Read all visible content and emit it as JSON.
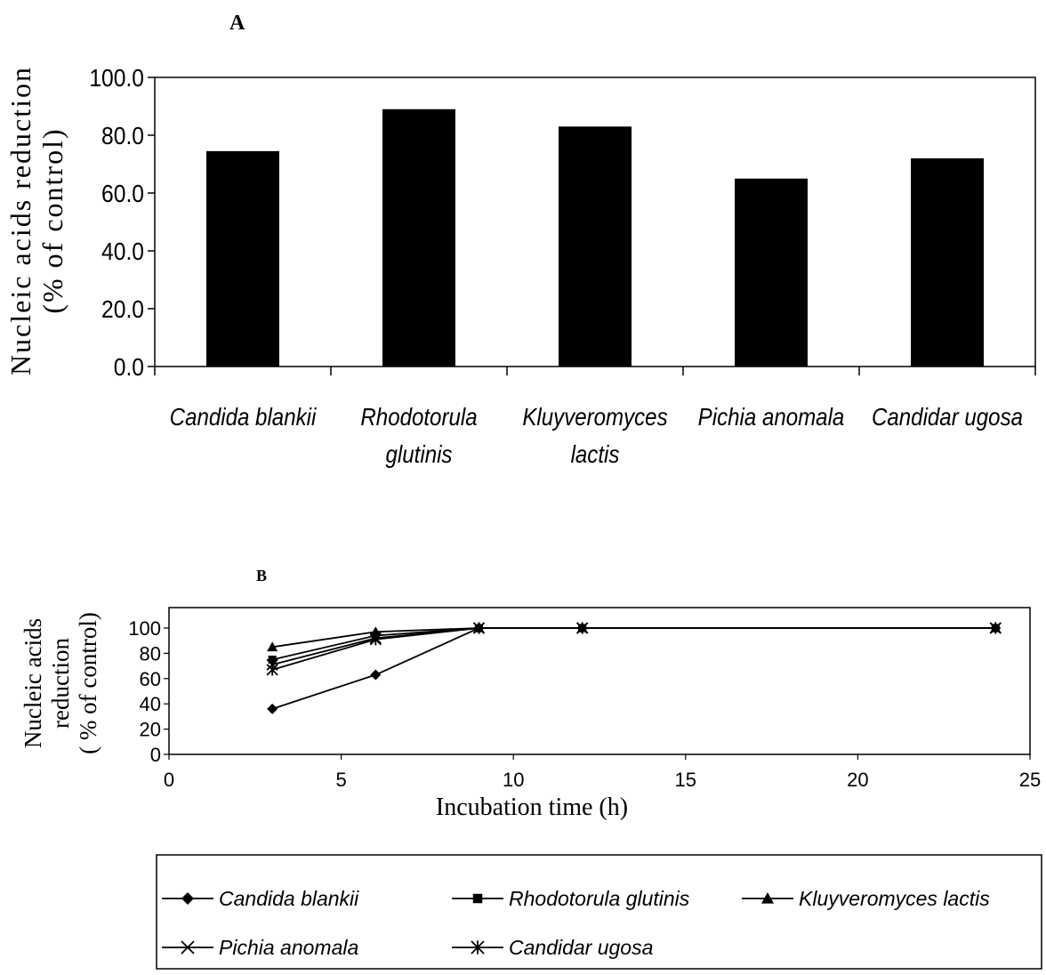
{
  "chart_data": [
    {
      "panel_label": "A",
      "type": "bar",
      "ylabel_line1": "Nucleic acids reduction",
      "ylabel_line2": "(% of control)",
      "ylim": [
        0,
        100
      ],
      "yticks": [
        0,
        20,
        40,
        60,
        80,
        100
      ],
      "ytick_labels": [
        "0.0",
        "20.0",
        "40.0",
        "60.0",
        "80.0",
        "100.0"
      ],
      "categories": [
        [
          "Candida blankii"
        ],
        [
          "Rhodotorula",
          "glutinis"
        ],
        [
          "Kluyveromyces",
          "lactis"
        ],
        [
          "Pichia anomala"
        ],
        [
          "Candidar ugosa"
        ]
      ],
      "values": [
        74.5,
        89.0,
        83.0,
        65.0,
        72.0
      ],
      "bar_color": "#000000",
      "grid": false
    },
    {
      "panel_label": "B",
      "type": "line",
      "ylabel_lines": [
        "Nucleic acids",
        "reduction",
        "( % of control)"
      ],
      "xlabel": "Incubation time (h)",
      "xlim": [
        0,
        25
      ],
      "ylim": [
        0,
        100
      ],
      "xticks": [
        0,
        5,
        10,
        15,
        20,
        25
      ],
      "yticks": [
        0,
        20,
        40,
        60,
        80,
        100
      ],
      "x": [
        3,
        6,
        9,
        12,
        24
      ],
      "series": [
        {
          "name": "Candida blankii",
          "marker": "diamond",
          "values": [
            36,
            63,
            100,
            100,
            100
          ]
        },
        {
          "name": "Rhodotorula glutinis",
          "marker": "square",
          "values": [
            75,
            94,
            100,
            100,
            100
          ]
        },
        {
          "name": "Kluyveromyces lactis",
          "marker": "triangle",
          "values": [
            85,
            97,
            100,
            100,
            100
          ]
        },
        {
          "name": "Pichia anomala",
          "marker": "x",
          "values": [
            71,
            92,
            100,
            100,
            100
          ]
        },
        {
          "name": "Candidar ugosa",
          "marker": "asterisk",
          "values": [
            67,
            91,
            100,
            100,
            100
          ]
        }
      ],
      "legend_position": "bottom",
      "grid": false
    }
  ]
}
